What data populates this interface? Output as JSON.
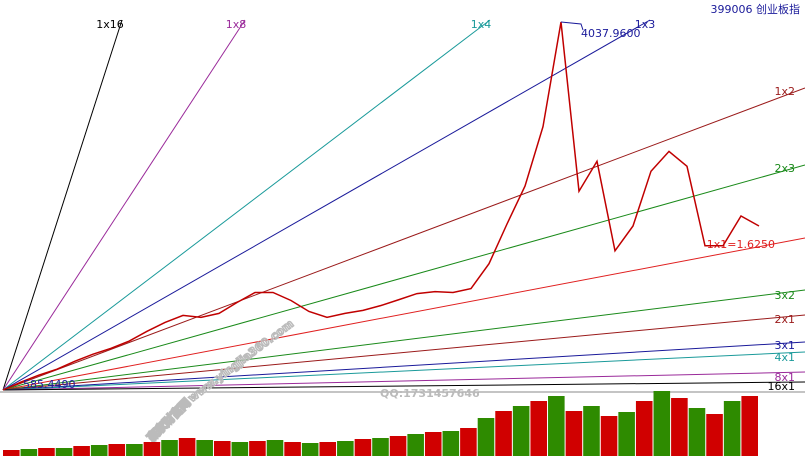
{
  "chart_data": {
    "type": "line",
    "title": "399006 创业板指",
    "series": [
      {
        "color": "#c00000",
        "values": [
          585.449,
          660,
          725,
          781,
          856,
          921,
          977,
          1043,
          1136,
          1220,
          1285,
          1267,
          1304,
          1406,
          1500,
          1500,
          1425,
          1322,
          1267,
          1304,
          1332,
          1378,
          1434,
          1490,
          1509,
          1500,
          1537,
          1770,
          2143,
          2498,
          3057,
          4037.96,
          2451,
          2731,
          1891,
          2124,
          2638,
          2824,
          2684,
          1938,
          1938,
          2218,
          2124
        ]
      }
    ],
    "annotations": [
      "4037.9600",
      "585.4490"
    ],
    "volume": {
      "colors": [
        "#d00000",
        "#2e8b00"
      ],
      "values": [
        6,
        7,
        8,
        8,
        10,
        11,
        12,
        12,
        14,
        16,
        18,
        16,
        15,
        14,
        15,
        16,
        14,
        13,
        14,
        15,
        17,
        18,
        20,
        22,
        24,
        25,
        28,
        38,
        45,
        50,
        55,
        60,
        45,
        50,
        40,
        44,
        55,
        65,
        58,
        48,
        42,
        55,
        60
      ]
    },
    "fan_lines": [
      {
        "label": "1x16",
        "color": "#000000"
      },
      {
        "label": "1x8",
        "color": "#9a2a9a"
      },
      {
        "label": "1x4",
        "color": "#1a9a9a"
      },
      {
        "label": "1x3",
        "color": "#1a1a9a"
      },
      {
        "label": "1x2",
        "color": "#9a1a1a"
      },
      {
        "label": "2x3",
        "color": "#1a8a1a"
      },
      {
        "label": "1x1=1.6250",
        "color": "#e02020"
      },
      {
        "label": "3x2",
        "color": "#1a8a1a"
      },
      {
        "label": "2x1",
        "color": "#9a1a1a"
      },
      {
        "label": "3x1",
        "color": "#1a1a9a"
      },
      {
        "label": "4x1",
        "color": "#1a9a9a"
      },
      {
        "label": "8x1",
        "color": "#9a2a9a"
      },
      {
        "label": "16x1",
        "color": "#000000"
      }
    ],
    "watermark": [
      "赢家财富网",
      "www.yingjia360.com",
      "QQ:1731457646"
    ]
  }
}
